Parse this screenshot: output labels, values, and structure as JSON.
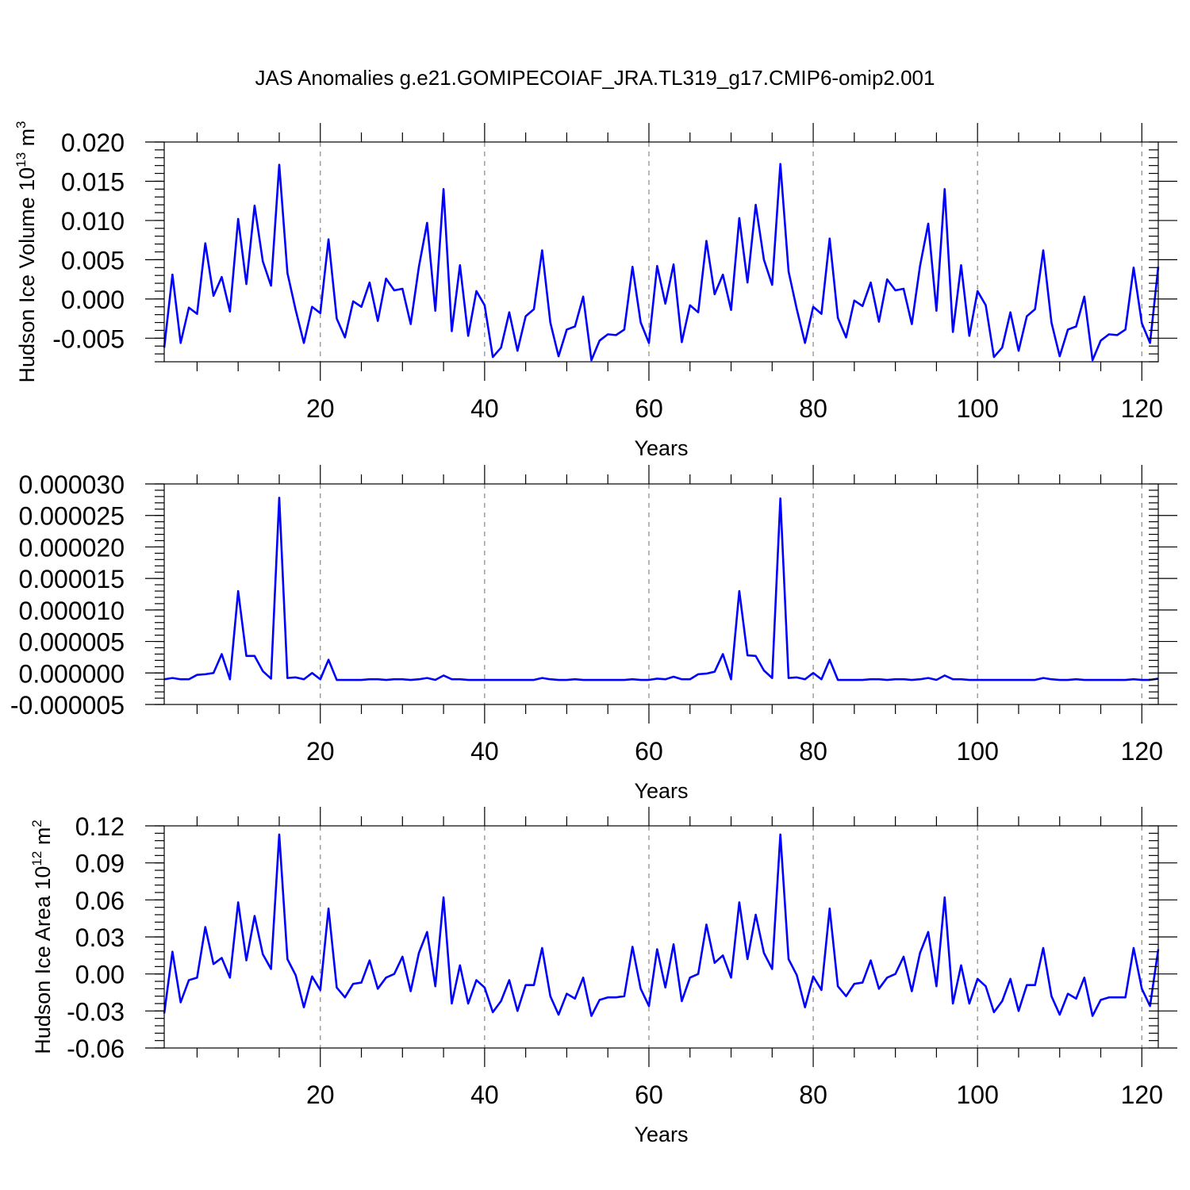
{
  "figure": {
    "title": "JAS Anomalies g.e21.GOMIPECOIAF_JRA.TL319_g17.CMIP6-omip2.001"
  },
  "colors": {
    "line": "#0000ff",
    "axis": "#000000",
    "grid": "#888888",
    "background": "#ffffff"
  },
  "chart_data": [
    {
      "type": "line",
      "id": "volume",
      "title": "",
      "xlabel": "Years",
      "ylabel": "Hudson Ice Volume 10",
      "ylabel_sup": "13",
      "ylabel_unit": " m",
      "ylabel_unit_sup": "3",
      "xlim": [
        1,
        122
      ],
      "ylim": [
        -0.008,
        0.02
      ],
      "xticks": [
        20,
        40,
        60,
        80,
        100,
        120
      ],
      "xtick_labels": [
        "20",
        "40",
        "60",
        "80",
        "100",
        "120"
      ],
      "yticks": [
        0.02,
        0.015,
        0.01,
        0.005,
        0.0,
        -0.005
      ],
      "ytick_labels": [
        "0.020",
        "0.015",
        "0.010",
        "0.005",
        "0.000",
        "-0.005"
      ],
      "grid": "vertical dashed at x ticks",
      "x_start": 1,
      "values": [
        -0.0062,
        0.0031,
        -0.0056,
        -0.0011,
        -0.0019,
        0.0071,
        0.0004,
        0.0028,
        -0.0016,
        0.0102,
        0.0019,
        0.0119,
        0.0048,
        0.0017,
        0.0171,
        0.0033,
        -0.0014,
        -0.0056,
        -0.001,
        -0.0018,
        0.0076,
        -0.0025,
        -0.0049,
        -0.0003,
        -0.001,
        0.0021,
        -0.0028,
        0.0026,
        0.0011,
        0.0013,
        -0.0032,
        0.0041,
        0.0097,
        -0.0015,
        0.014,
        -0.0041,
        0.0043,
        -0.0047,
        0.001,
        -0.0008,
        -0.0074,
        -0.0062,
        -0.0017,
        -0.0066,
        -0.0022,
        -0.0013,
        0.0062,
        -0.003,
        -0.0073,
        -0.0039,
        -0.0035,
        0.0003,
        -0.0078,
        -0.0053,
        -0.0045,
        -0.0046,
        -0.0039,
        0.0041,
        -0.003,
        -0.0056,
        0.0042,
        -0.0006,
        0.0044,
        -0.0055,
        -0.0008,
        -0.0017,
        0.0074,
        0.0006,
        0.0031,
        -0.0014,
        0.0103,
        0.0021,
        0.012,
        0.005,
        0.0018,
        0.0172,
        0.0035,
        -0.0013,
        -0.0056,
        -0.001,
        -0.0019,
        0.0077,
        -0.0024,
        -0.0049,
        -0.0002,
        -0.0009,
        0.0021,
        -0.0029,
        0.0025,
        0.0011,
        0.0013,
        -0.0032,
        0.0042,
        0.0096,
        -0.0015,
        0.014,
        -0.0042,
        0.0043,
        -0.0047,
        0.001,
        -0.0008,
        -0.0074,
        -0.0062,
        -0.0017,
        -0.0066,
        -0.0022,
        -0.0013,
        0.0062,
        -0.003,
        -0.0073,
        -0.0039,
        -0.0035,
        0.0003,
        -0.0078,
        -0.0053,
        -0.0045,
        -0.0046,
        -0.0039,
        0.004,
        -0.0031,
        -0.0056,
        0.0041
      ]
    },
    {
      "type": "line",
      "id": "middle",
      "title": "",
      "xlabel": "Years",
      "ylabel": "",
      "ylabel_sup": "",
      "ylabel_unit": "",
      "ylabel_unit_sup": "",
      "xlim": [
        1,
        122
      ],
      "ylim": [
        -5e-06,
        3e-05
      ],
      "xticks": [
        20,
        40,
        60,
        80,
        100,
        120
      ],
      "xtick_labels": [
        "20",
        "40",
        "60",
        "80",
        "100",
        "120"
      ],
      "yticks": [
        3e-05,
        2.5e-05,
        2e-05,
        1.5e-05,
        1e-05,
        5e-06,
        0.0,
        -5e-06
      ],
      "ytick_labels": [
        "0.000030",
        "0.000025",
        "0.000020",
        "0.000015",
        "0.000010",
        "0.000005",
        "0.000000",
        "-0.000005"
      ],
      "grid": "vertical dashed at x ticks",
      "x_start": 1,
      "values": [
        -1e-06,
        -8e-07,
        -1e-06,
        -1e-06,
        -3e-07,
        -2e-07,
        0.0,
        3e-06,
        -1e-06,
        1.3e-05,
        2.7e-06,
        2.7e-06,
        3e-07,
        -9e-07,
        2.78e-05,
        -8e-07,
        -7e-07,
        -1e-06,
        0.0,
        -1e-06,
        2.1e-06,
        -1.1e-06,
        -1.1e-06,
        -1.1e-06,
        -1.1e-06,
        -1e-06,
        -1e-06,
        -1.1e-06,
        -1e-06,
        -1e-06,
        -1.1e-06,
        -1e-06,
        -8e-07,
        -1.1e-06,
        -4e-07,
        -1e-06,
        -1e-06,
        -1.1e-06,
        -1.1e-06,
        -1.1e-06,
        -1.1e-06,
        -1.1e-06,
        -1.1e-06,
        -1.1e-06,
        -1.1e-06,
        -1.1e-06,
        -8e-07,
        -1e-06,
        -1.1e-06,
        -1.1e-06,
        -1e-06,
        -1.1e-06,
        -1.1e-06,
        -1.1e-06,
        -1.1e-06,
        -1.1e-06,
        -1.1e-06,
        -1e-06,
        -1.1e-06,
        -1.1e-06,
        -9e-07,
        -1e-06,
        -6e-07,
        -1e-06,
        -1e-06,
        -2e-07,
        -1e-07,
        2e-07,
        3e-06,
        -1e-06,
        1.3e-05,
        2.8e-06,
        2.7e-06,
        4e-07,
        -8e-07,
        2.77e-05,
        -8e-07,
        -7e-07,
        -1e-06,
        0.0,
        -1e-06,
        2.1e-06,
        -1.1e-06,
        -1.1e-06,
        -1.1e-06,
        -1.1e-06,
        -1e-06,
        -1e-06,
        -1.1e-06,
        -1e-06,
        -1e-06,
        -1.1e-06,
        -1e-06,
        -8e-07,
        -1.1e-06,
        -4e-07,
        -1e-06,
        -1e-06,
        -1.1e-06,
        -1.1e-06,
        -1.1e-06,
        -1.1e-06,
        -1.1e-06,
        -1.1e-06,
        -1.1e-06,
        -1.1e-06,
        -1.1e-06,
        -8e-07,
        -1e-06,
        -1.1e-06,
        -1.1e-06,
        -1e-06,
        -1.1e-06,
        -1.1e-06,
        -1.1e-06,
        -1.1e-06,
        -1.1e-06,
        -1.1e-06,
        -1e-06,
        -1.1e-06,
        -1.1e-06,
        -9e-07
      ]
    },
    {
      "type": "line",
      "id": "area",
      "title": "",
      "xlabel": "Years",
      "ylabel": "Hudson Ice Area 10",
      "ylabel_sup": "12",
      "ylabel_unit": " m",
      "ylabel_unit_sup": "2",
      "xlim": [
        1,
        122
      ],
      "ylim": [
        -0.06,
        0.12
      ],
      "xticks": [
        20,
        40,
        60,
        80,
        100,
        120
      ],
      "xtick_labels": [
        "20",
        "40",
        "60",
        "80",
        "100",
        "120"
      ],
      "yticks": [
        0.12,
        0.09,
        0.06,
        0.03,
        0.0,
        -0.03,
        -0.06
      ],
      "ytick_labels": [
        "0.12",
        "0.09",
        "0.06",
        "0.03",
        "0.00",
        "-0.03",
        "-0.06"
      ],
      "grid": "vertical dashed at x ticks",
      "x_start": 1,
      "values": [
        -0.032,
        0.018,
        -0.023,
        -0.005,
        -0.003,
        0.038,
        0.008,
        0.013,
        -0.003,
        0.058,
        0.011,
        0.047,
        0.016,
        0.004,
        0.113,
        0.012,
        -0.001,
        -0.027,
        -0.002,
        -0.013,
        0.053,
        -0.011,
        -0.019,
        -0.008,
        -0.007,
        0.011,
        -0.012,
        -0.003,
        0.0,
        0.014,
        -0.014,
        0.017,
        0.034,
        -0.01,
        0.062,
        -0.024,
        0.007,
        -0.024,
        -0.005,
        -0.011,
        -0.031,
        -0.022,
        -0.005,
        -0.03,
        -0.009,
        -0.009,
        0.021,
        -0.018,
        -0.033,
        -0.016,
        -0.02,
        -0.003,
        -0.034,
        -0.021,
        -0.019,
        -0.019,
        -0.018,
        0.022,
        -0.012,
        -0.026,
        0.02,
        -0.011,
        0.024,
        -0.022,
        -0.003,
        0.0,
        0.04,
        0.009,
        0.015,
        -0.003,
        0.058,
        0.012,
        0.048,
        0.017,
        0.004,
        0.113,
        0.012,
        -0.001,
        -0.027,
        -0.002,
        -0.013,
        0.053,
        -0.01,
        -0.018,
        -0.008,
        -0.007,
        0.011,
        -0.012,
        -0.003,
        0.0,
        0.014,
        -0.014,
        0.017,
        0.034,
        -0.01,
        0.062,
        -0.024,
        0.007,
        -0.024,
        -0.004,
        -0.01,
        -0.031,
        -0.022,
        -0.004,
        -0.03,
        -0.009,
        -0.009,
        0.021,
        -0.018,
        -0.033,
        -0.016,
        -0.02,
        -0.003,
        -0.034,
        -0.021,
        -0.019,
        -0.019,
        -0.019,
        0.021,
        -0.012,
        -0.026,
        0.02
      ]
    }
  ]
}
